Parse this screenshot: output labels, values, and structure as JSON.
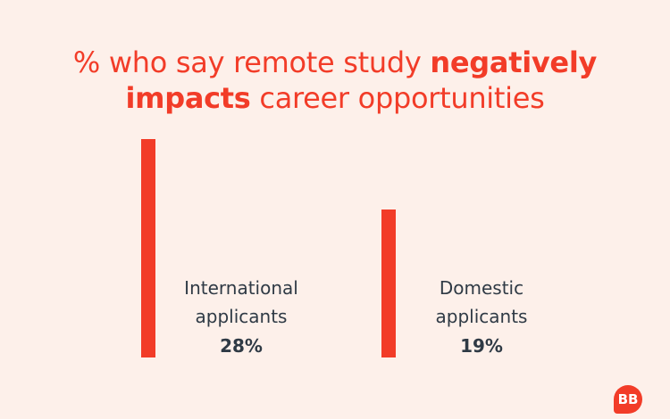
{
  "chart_data": {
    "type": "bar",
    "title": [
      {
        "text": "% who say remote study ",
        "bold": false
      },
      {
        "text": "negatively",
        "bold": true
      },
      {
        "text": "impacts",
        "bold": true,
        "break": true
      },
      {
        "text": " career opportunities",
        "bold": false
      }
    ],
    "categories": [
      "International applicants",
      "Domestic applicants"
    ],
    "values": [
      28,
      19
    ],
    "value_labels": [
      "28%",
      "19%"
    ],
    "color": "#f23c28"
  },
  "logo": "BB"
}
